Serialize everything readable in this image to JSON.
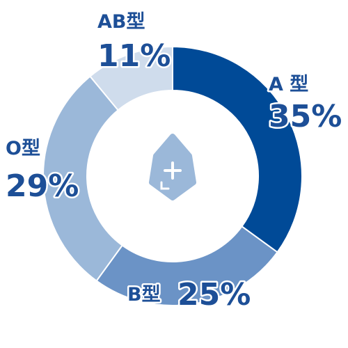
{
  "chart_data": {
    "type": "pie",
    "categories": [
      "A 型",
      "B型",
      "O型",
      "AB型"
    ],
    "values": [
      35,
      25,
      29,
      11
    ],
    "value_labels": [
      "35%",
      "25%",
      "29%",
      "11%"
    ],
    "colors": [
      "#004a97",
      "#6b93c6",
      "#9bb8d9",
      "#cfdcec"
    ]
  }
}
